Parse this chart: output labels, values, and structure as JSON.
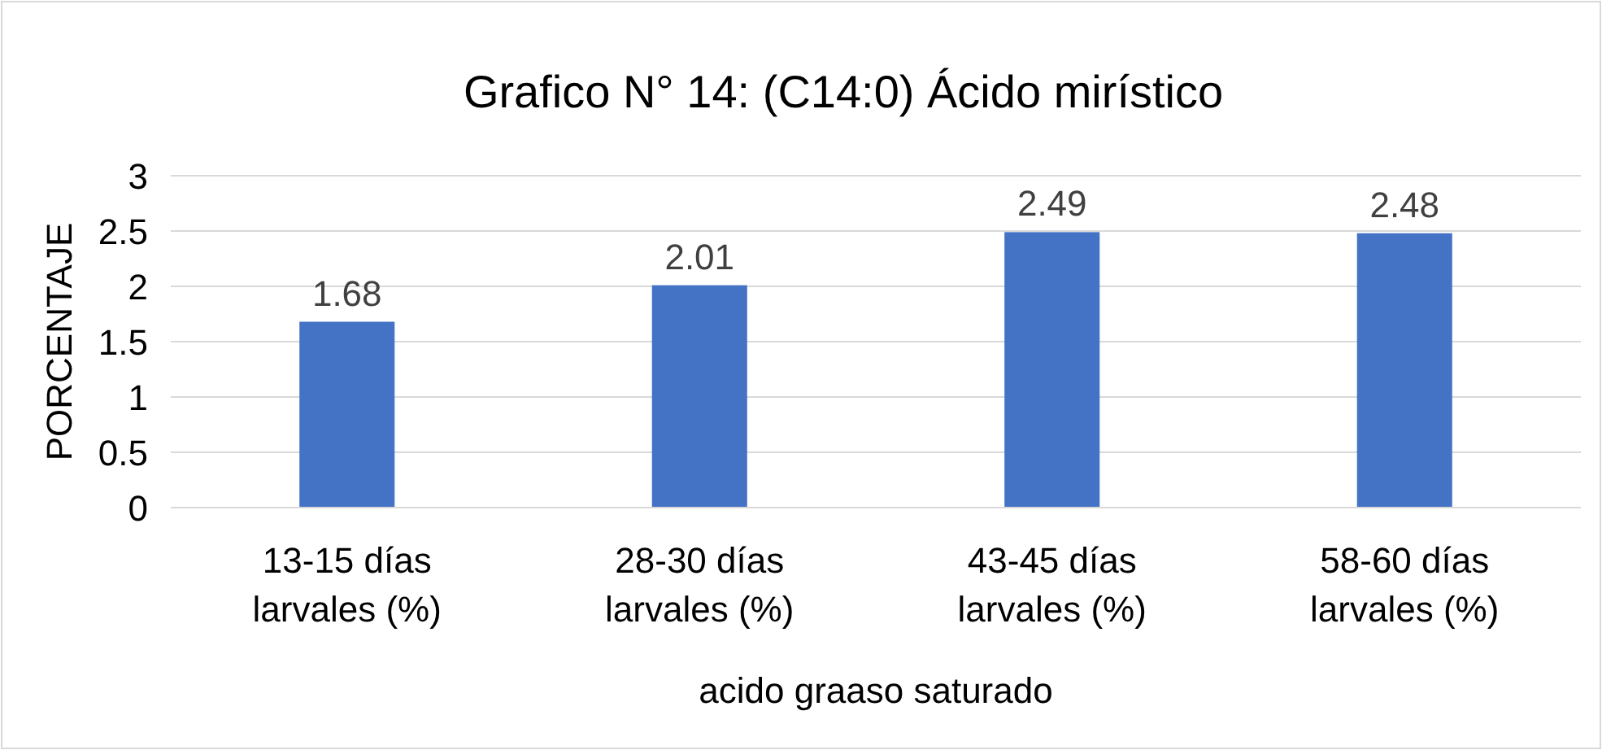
{
  "chart_data": {
    "type": "bar",
    "title": "Grafico N° 14: (C14:0) Ácido mirístico",
    "xlabel": "acido graaso saturado",
    "ylabel": "PORCENTAJE",
    "categories": [
      "13-15 días larvales (%)",
      "28-30 días larvales (%)",
      "43-45 días larvales (%)",
      "58-60 días larvales (%)"
    ],
    "values": [
      1.68,
      2.01,
      2.49,
      2.48
    ],
    "color": "#4472c4",
    "data_labels": true,
    "ylim": [
      0,
      3
    ],
    "yticks": [
      0,
      0.5,
      1,
      1.5,
      2,
      2.5,
      3
    ],
    "grid": "y"
  }
}
